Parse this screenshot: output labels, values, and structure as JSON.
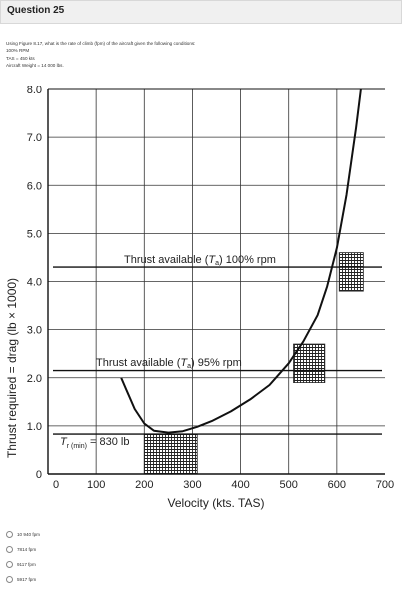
{
  "question": {
    "title": "Question 25",
    "prompt_lines": [
      "Using Figure 8.17, what is the rate of climb (fpm) of the aircraft given the following conditions:",
      "100% RPM",
      "TAS = 450 kts",
      "Aircraft Weight = 14 000 lbs."
    ],
    "options": [
      "10 940 fpm",
      "7814 fpm",
      "9117 fpm",
      "5917 fpm"
    ]
  },
  "chart_data": {
    "type": "line",
    "xlabel": "Velocity (kts. TAS)",
    "ylabel": "Thrust required = drag (lb × 1000)",
    "xlim": [
      0,
      700
    ],
    "ylim": [
      0,
      8
    ],
    "x_ticks": [
      "0",
      "100",
      "200",
      "300",
      "400",
      "500",
      "600",
      "700"
    ],
    "y_ticks": [
      "0",
      "1.0",
      "2.0",
      "3.0",
      "4.0",
      "5.0",
      "6.0",
      "7.0",
      "8.0"
    ],
    "grid": true,
    "thrust_required_curve": {
      "x": [
        152,
        165,
        180,
        200,
        220,
        250,
        280,
        310,
        340,
        380,
        420,
        460,
        500,
        530,
        560,
        580,
        600,
        620,
        640,
        650
      ],
      "y": [
        2.0,
        1.7,
        1.35,
        1.05,
        0.9,
        0.86,
        0.89,
        0.98,
        1.1,
        1.3,
        1.55,
        1.85,
        2.3,
        2.75,
        3.3,
        3.9,
        4.7,
        5.8,
        7.2,
        8.0
      ]
    },
    "thrust_available_100": {
      "label_prefix": "Thrust available (",
      "label_T": "T",
      "label_sub": "a",
      "label_suffix": ") 100% rpm",
      "y": 4.3
    },
    "thrust_available_95": {
      "label_prefix": "Thrust available (",
      "label_T": "T",
      "label_sub": "a",
      "label_suffix": ") 95% rpm",
      "y": 2.15
    },
    "tr_min": {
      "label_T": "T",
      "label_sub": "r (min)",
      "label_value": " = 830 lb",
      "y": 0.83
    }
  }
}
